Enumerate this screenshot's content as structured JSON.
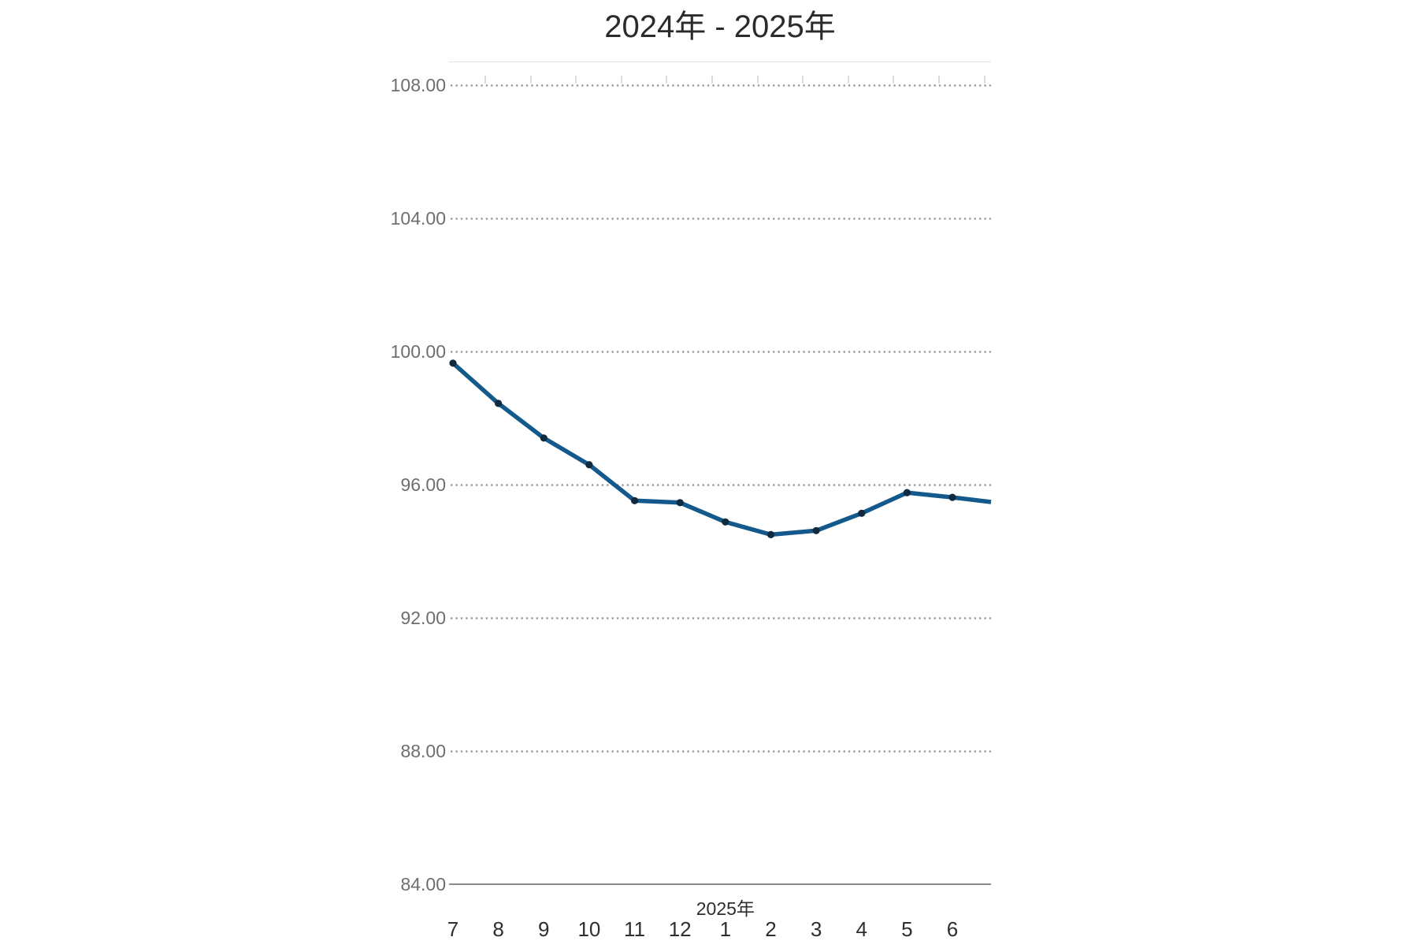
{
  "chart_data": {
    "type": "line",
    "title": "2024年 - 2025年",
    "categories": [
      "7",
      "8",
      "9",
      "10",
      "11",
      "12",
      "1",
      "2",
      "3",
      "4",
      "5",
      "6"
    ],
    "values": [
      99.65,
      98.44,
      97.4,
      96.6,
      95.52,
      95.46,
      94.88,
      94.5,
      94.62,
      95.14,
      95.76,
      95.62
    ],
    "line_end_value": 95.48,
    "y_ticks": [
      "108.00",
      "104.00",
      "100.00",
      "96.00",
      "92.00",
      "88.00",
      "84.00"
    ],
    "ylim": [
      84,
      108
    ],
    "xlabel": "",
    "ylabel": "",
    "legend": "none",
    "grid": "horizontal-dotted",
    "x_year_label": {
      "text": "2025年",
      "above_category_index": 6
    },
    "colors": {
      "line": "#14598c",
      "marker": "#102a40",
      "grid_dots": "#9a9a9a",
      "axis_line": "#8c8c8c",
      "y_label": "#6e6e6e",
      "x_label": "#2e2e2e",
      "title": "#2b2b2b",
      "background": "#ffffff"
    }
  }
}
